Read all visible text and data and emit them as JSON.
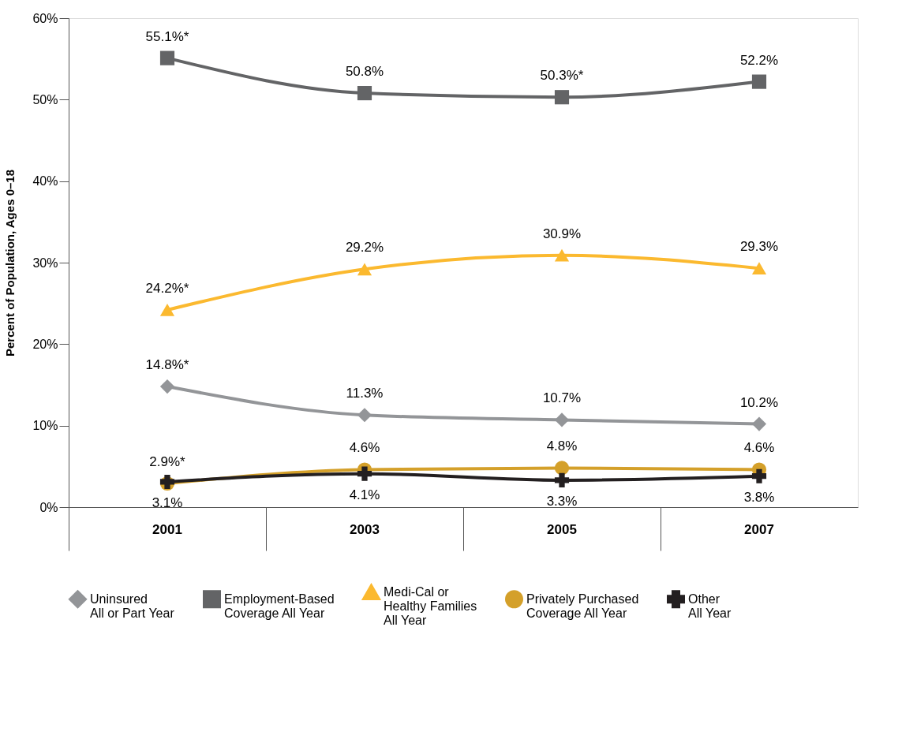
{
  "chart_data": {
    "type": "line",
    "ylabel": "Percent of Population, Ages 0–18",
    "categories": [
      "2001",
      "2003",
      "2005",
      "2007"
    ],
    "series": [
      {
        "name": "Uninsured\nAll or Part Year",
        "color": "#939598",
        "marker": "diamond",
        "values": [
          14.8,
          11.3,
          10.7,
          10.2
        ],
        "value_labels": [
          "14.8%*",
          "11.3%",
          "10.7%",
          "10.2%"
        ]
      },
      {
        "name": "Employment-Based\nCoverage All Year",
        "color": "#636466",
        "marker": "square",
        "values": [
          55.1,
          50.8,
          50.3,
          52.2
        ],
        "value_labels": [
          "55.1%*",
          "50.8%",
          "50.3%*",
          "52.2%"
        ]
      },
      {
        "name": "Medi-Cal or\nHealthy Families\nAll Year",
        "color": "#fbb92f",
        "marker": "triangle",
        "values": [
          24.2,
          29.2,
          30.9,
          29.3
        ],
        "value_labels": [
          "24.2%*",
          "29.2%",
          "30.9%",
          "29.3%"
        ]
      },
      {
        "name": "Privately Purchased\nCoverage All Year",
        "color": "#d4a02a",
        "marker": "circle",
        "values": [
          2.9,
          4.6,
          4.8,
          4.6
        ],
        "value_labels": [
          "2.9%*",
          "4.6%",
          "4.8%",
          "4.6%"
        ]
      },
      {
        "name": "Other\nAll Year",
        "color": "#231f20",
        "marker": "cross",
        "values": [
          3.1,
          4.1,
          3.3,
          3.8
        ],
        "value_labels": [
          "3.1%",
          "4.1%",
          "3.3%",
          "3.8%"
        ]
      }
    ],
    "ylim": [
      0,
      60
    ],
    "yticks": [
      {
        "value": 0,
        "label": "0%"
      },
      {
        "value": 10,
        "label": "10%"
      },
      {
        "value": 20,
        "label": "20%"
      },
      {
        "value": 30,
        "label": "30%"
      },
      {
        "value": 40,
        "label": "40%"
      },
      {
        "value": 50,
        "label": "50%"
      },
      {
        "value": 60,
        "label": "60%"
      }
    ],
    "grid": false,
    "legend": "bottom",
    "line_style": "solid"
  }
}
